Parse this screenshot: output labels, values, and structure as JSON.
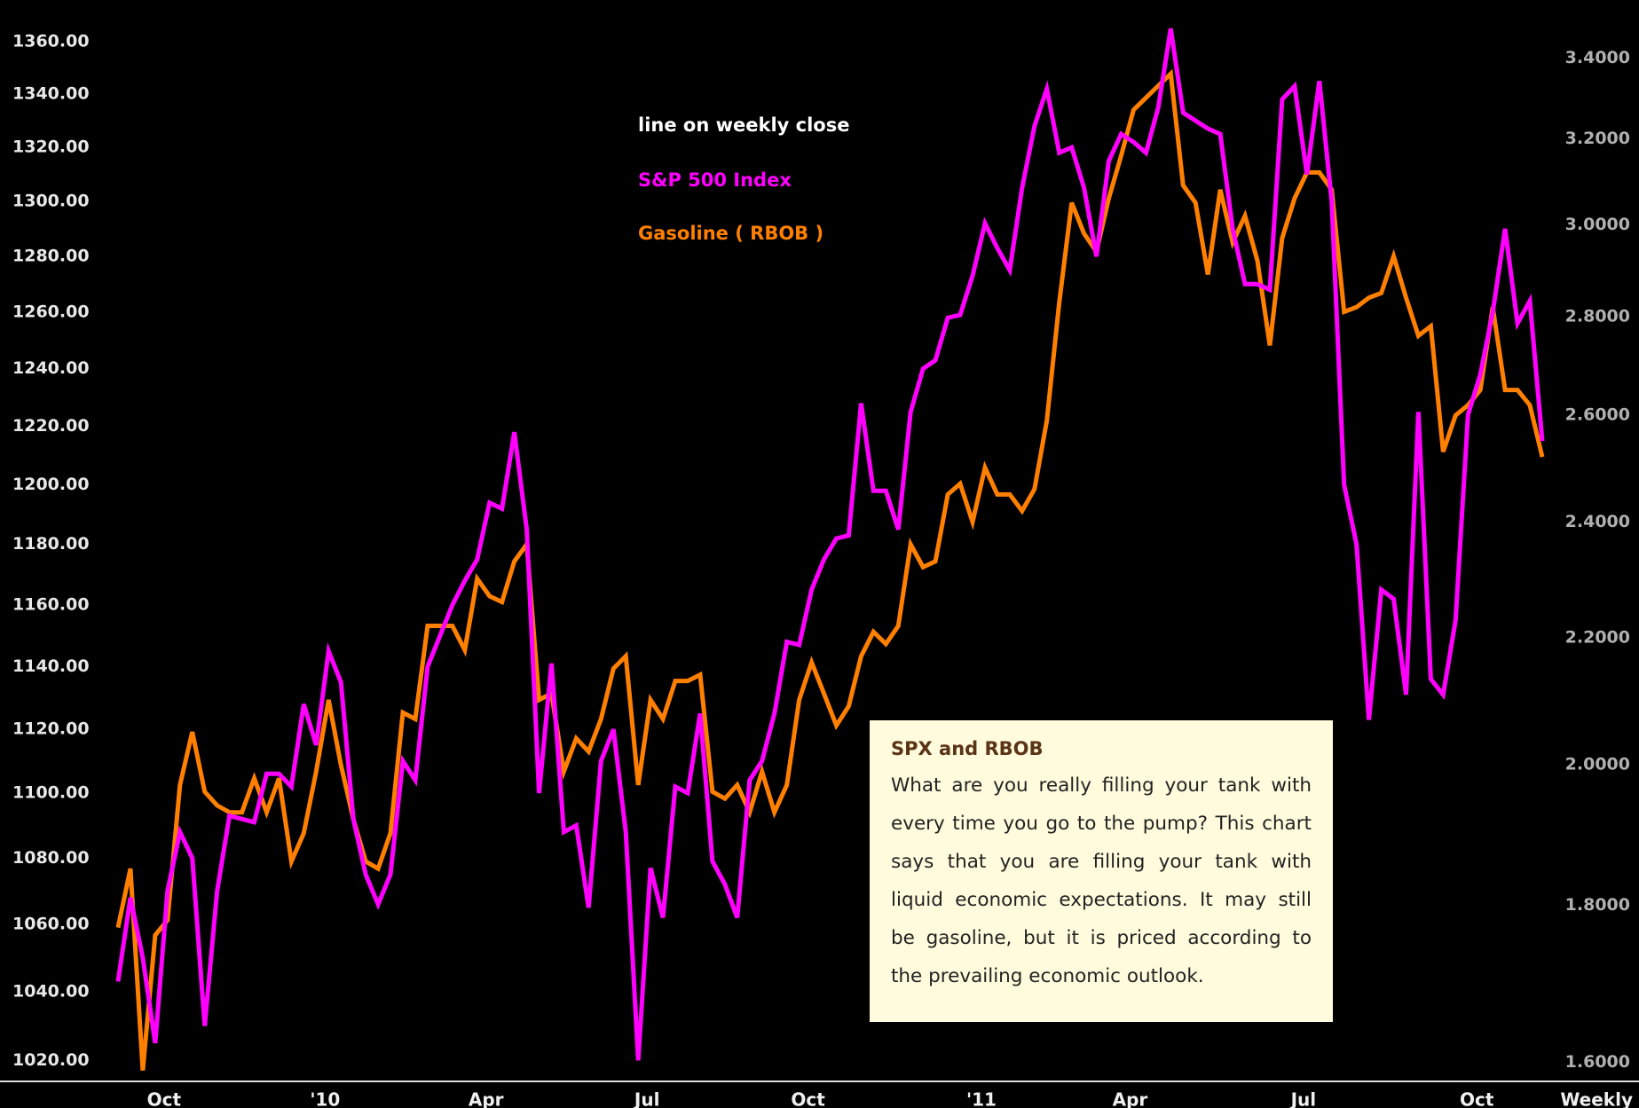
{
  "chart_data": {
    "type": "line",
    "annotations": [
      "line on weekly close"
    ],
    "x_label": "Weekly",
    "log_scale": true,
    "background": "#000000",
    "categories": [
      null,
      null,
      null,
      "Oct",
      null,
      null,
      null,
      null,
      null,
      null,
      null,
      null,
      null,
      null,
      null,
      null,
      "'10",
      null,
      null,
      null,
      null,
      null,
      null,
      null,
      null,
      null,
      null,
      null,
      null,
      "Apr",
      null,
      null,
      null,
      null,
      null,
      null,
      null,
      null,
      null,
      null,
      null,
      null,
      "Jul",
      null,
      null,
      null,
      null,
      null,
      null,
      null,
      null,
      null,
      null,
      null,
      null,
      "Oct",
      null,
      null,
      null,
      null,
      null,
      null,
      null,
      null,
      null,
      null,
      null,
      null,
      null,
      "'11",
      null,
      null,
      null,
      null,
      null,
      null,
      null,
      null,
      null,
      null,
      null,
      "Apr",
      null,
      null,
      null,
      null,
      null,
      null,
      null,
      null,
      null,
      null,
      null,
      null,
      null,
      "Jul",
      null,
      null,
      null,
      null,
      null,
      null,
      null,
      null,
      null,
      null,
      null,
      null,
      null,
      "Oct",
      null,
      null,
      null,
      null,
      null,
      null
    ],
    "series": [
      {
        "name": "S&P 500 Index",
        "color": "#ff00ff",
        "axis": "y",
        "values": [
          1043,
          1068,
          1050,
          1025,
          1070,
          1088,
          1080,
          1030,
          1070,
          1093,
          1092,
          1091,
          1106,
          1106,
          1102,
          1128,
          1115,
          1145,
          1135,
          1092,
          1075,
          1066,
          1075,
          1110,
          1104,
          1140,
          1150,
          1160,
          1168,
          1175,
          1194,
          1192,
          1218,
          1185,
          1100,
          1141,
          1088,
          1090,
          1065,
          1110,
          1120,
          1088,
          1020,
          1077,
          1062,
          1102,
          1100,
          1125,
          1079,
          1072,
          1062,
          1104,
          1110,
          1125,
          1148,
          1147,
          1165,
          1175,
          1182,
          1183,
          1228,
          1198,
          1198,
          1185,
          1225,
          1240,
          1243,
          1258,
          1259,
          1273,
          1292,
          1283,
          1275,
          1305,
          1328,
          1342,
          1318,
          1320,
          1305,
          1280,
          1315,
          1325,
          1322,
          1318,
          1335,
          1365,
          1333,
          1330,
          1327,
          1325,
          1290,
          1270,
          1270,
          1268,
          1338,
          1343,
          1310,
          1345,
          1300,
          1200,
          1180,
          1123,
          1165,
          1162,
          1131,
          1225,
          1136,
          1131,
          1155,
          1224,
          1238,
          1260,
          1290,
          1256,
          1264,
          1215
        ]
      },
      {
        "name": "Gasoline ( RBOB )",
        "color": "#ff8000",
        "axis": "y2",
        "values": [
          1.77,
          1.85,
          1.59,
          1.76,
          1.78,
          1.97,
          2.05,
          1.96,
          1.94,
          1.93,
          1.93,
          1.98,
          1.93,
          1.98,
          1.86,
          1.9,
          1.99,
          2.1,
          2.0,
          1.92,
          1.86,
          1.85,
          1.9,
          2.08,
          2.07,
          2.22,
          2.22,
          2.22,
          2.18,
          2.3,
          2.27,
          2.26,
          2.33,
          2.36,
          2.1,
          2.11,
          1.99,
          2.04,
          2.02,
          2.07,
          2.15,
          2.17,
          1.97,
          2.1,
          2.07,
          2.13,
          2.13,
          2.14,
          1.96,
          1.95,
          1.97,
          1.93,
          1.99,
          1.93,
          1.97,
          2.1,
          2.16,
          2.11,
          2.06,
          2.09,
          2.17,
          2.21,
          2.19,
          2.22,
          2.36,
          2.32,
          2.33,
          2.45,
          2.47,
          2.4,
          2.5,
          2.45,
          2.45,
          2.42,
          2.46,
          2.59,
          2.83,
          3.05,
          2.98,
          2.94,
          3.06,
          3.16,
          3.27,
          3.3,
          3.33,
          3.36,
          3.09,
          3.05,
          2.89,
          3.08,
          2.96,
          3.02,
          2.92,
          2.74,
          2.97,
          3.06,
          3.12,
          3.12,
          3.08,
          2.81,
          2.82,
          2.84,
          2.85,
          2.93,
          2.84,
          2.76,
          2.78,
          2.53,
          2.6,
          2.62,
          2.65,
          2.82,
          2.65,
          2.65,
          2.62,
          2.52
        ]
      }
    ],
    "ylim": [
      1014,
      1373
    ],
    "yticks": [
      {
        "value": 1020,
        "label": "1020.00"
      },
      {
        "value": 1040,
        "label": "1040.00"
      },
      {
        "value": 1060,
        "label": "1060.00"
      },
      {
        "value": 1080,
        "label": "1080.00"
      },
      {
        "value": 1100,
        "label": "1100.00"
      },
      {
        "value": 1120,
        "label": "1120.00"
      },
      {
        "value": 1140,
        "label": "1140.00"
      },
      {
        "value": 1160,
        "label": "1160.00"
      },
      {
        "value": 1180,
        "label": "1180.00"
      },
      {
        "value": 1200,
        "label": "1200.00"
      },
      {
        "value": 1220,
        "label": "1220.00"
      },
      {
        "value": 1240,
        "label": "1240.00"
      },
      {
        "value": 1260,
        "label": "1260.00"
      },
      {
        "value": 1280,
        "label": "1280.00"
      },
      {
        "value": 1300,
        "label": "1300.00"
      },
      {
        "value": 1320,
        "label": "1320.00"
      },
      {
        "value": 1340,
        "label": "1340.00"
      },
      {
        "value": 1360,
        "label": "1360.00"
      }
    ],
    "y2lim": [
      1.577,
      3.53
    ],
    "y2ticks": [
      {
        "value": 1.6,
        "label": "1.6000"
      },
      {
        "value": 1.8,
        "label": "1.8000"
      },
      {
        "value": 2.0,
        "label": "2.0000"
      },
      {
        "value": 2.2,
        "label": "2.2000"
      },
      {
        "value": 2.4,
        "label": "2.4000"
      },
      {
        "value": 2.6,
        "label": "2.6000"
      },
      {
        "value": 2.8,
        "label": "2.8000"
      },
      {
        "value": 3.0,
        "label": "3.0000"
      },
      {
        "value": 3.2,
        "label": "3.2000"
      },
      {
        "value": 3.4,
        "label": "3.4000"
      }
    ]
  },
  "note": {
    "title": "SPX and RBOB",
    "body": "What are you really filling your tank with every time you go to the pump? This chart says that you are filling your tank with liquid economic expectations. It may still be gasoline, but it is priced according to the prevailing economic outlook."
  }
}
